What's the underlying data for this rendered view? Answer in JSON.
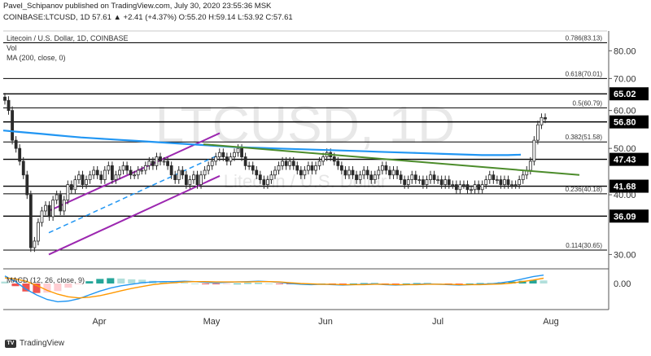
{
  "header": {
    "line1": "Pavel_Schipanov published on TradingView.com, July 30, 2020 23:55:36 MSK",
    "line2": "COINBASE:LTCUSD, 1D 57.61 ▲ +2.41 (+4.37%) O:55.20 H:59.14 L:53.92 C:57.61"
  },
  "chart_labels": {
    "symbol": "Litecoin / U.S. Dollar, 1D, COINBASE",
    "vol": "Vol",
    "ma": "MA (200, close, 0)",
    "macd": "MACD (12, 26, close, 9)",
    "watermark_big": "LTCUSD, 1D",
    "watermark_small": "Litecoin / U.S. Dollar"
  },
  "footer": {
    "brand": "TradingView",
    "badge": "TV"
  },
  "colors": {
    "up": "#26a69a",
    "down": "#ef5350",
    "candle_body": "#2a2a2a",
    "ma200": "#2196f3",
    "trend_green": "#4c8c2b",
    "channel": "#9c27b0",
    "macd_line": "#2196f3",
    "signal_line": "#ff9800",
    "level": "#000000"
  },
  "chart_data": [
    {
      "type": "candlestick",
      "title": "Litecoin / U.S. Dollar, 1D, COINBASE",
      "x_ticks": [
        "Apr",
        "May",
        "Jun",
        "Jul",
        "Aug"
      ],
      "y_ticks": [
        30.0,
        40.0,
        50.0,
        60.0,
        70.0,
        80.0
      ],
      "ylim": [
        28,
        88
      ],
      "y_scale": "log",
      "horizontal_levels": [
        {
          "value": 83.13,
          "label": "0.786(83.13)"
        },
        {
          "value": 70.01,
          "label": "0.618(70.01)"
        },
        {
          "value": 65.02,
          "label": "65.02",
          "tag": true
        },
        {
          "value": 60.79,
          "label": "0.5(60.79)"
        },
        {
          "value": 56.8,
          "label": "56.80",
          "tag": true
        },
        {
          "value": 51.58,
          "label": "0.382(51.58)"
        },
        {
          "value": 47.43,
          "label": "47.43",
          "tag": true
        },
        {
          "value": 41.68,
          "label": "41.68",
          "tag": true
        },
        {
          "value": 40.18,
          "label": "0.236(40.18)"
        },
        {
          "value": 36.09,
          "label": "36.09",
          "tag": true
        },
        {
          "value": 30.65,
          "label": "0.114(30.65)"
        }
      ],
      "close_series": [
        63,
        60,
        52,
        50,
        47,
        44,
        40,
        31,
        32,
        35,
        37,
        38,
        36,
        39,
        40,
        37,
        39,
        42,
        41,
        43,
        44,
        42,
        43,
        44,
        45,
        44,
        43,
        45,
        46,
        43,
        44,
        45,
        46,
        45,
        44,
        44,
        45,
        45,
        46,
        47,
        46,
        48,
        47,
        47,
        46,
        44,
        43,
        45,
        44,
        42,
        43,
        44,
        42,
        44,
        45,
        46,
        47,
        48,
        49,
        48,
        47,
        48,
        49,
        50,
        48,
        46,
        46,
        45,
        44,
        43,
        42,
        43,
        44,
        45,
        46,
        47,
        46,
        47,
        46,
        45,
        44,
        45,
        46,
        45,
        46,
        47,
        48,
        49,
        48,
        47,
        46,
        45,
        44,
        45,
        44,
        43,
        44,
        45,
        44,
        43,
        44,
        45,
        46,
        45,
        44,
        45,
        44,
        43,
        42,
        43,
        44,
        43,
        43,
        42,
        43,
        44,
        43,
        43,
        42,
        43,
        42,
        42,
        41,
        42,
        42,
        41,
        41,
        42,
        41,
        42,
        43,
        44,
        43,
        43,
        42,
        43,
        42,
        42,
        42,
        43,
        44,
        45,
        47,
        52,
        56,
        58,
        57.61
      ],
      "ma200": [
        54.5,
        54.2,
        53.9,
        53.6,
        53.3,
        53.0,
        52.7,
        52.5,
        52.3,
        52.1,
        51.9,
        51.7,
        51.5,
        51.3,
        51.1,
        50.9,
        50.7,
        50.5,
        50.3,
        50.2,
        50.1,
        50.0,
        49.9,
        49.8,
        49.7,
        49.6,
        49.5,
        49.4,
        49.3,
        49.2,
        49.1,
        49.0,
        48.9,
        48.8,
        48.7,
        48.6,
        48.5,
        48.4,
        48.4,
        48.4,
        48.5
      ],
      "green_trend": {
        "from": 51.0,
        "to": 44.0
      },
      "channel": {
        "lower_from": 30.0,
        "lower_to": 43.8,
        "upper_from": 37.0,
        "upper_to": 53.8
      }
    },
    {
      "type": "line",
      "title": "MACD (12, 26, close, 9)",
      "y_ticks": [
        0.0
      ],
      "ylim": [
        -6,
        3
      ],
      "series": [
        {
          "name": "MACD",
          "values": [
            2.0,
            0.5,
            -1.5,
            -3.0,
            -4.2,
            -4.8,
            -4.6,
            -4.0,
            -3.0,
            -2.0,
            -1.2,
            -0.6,
            -0.2,
            0.2,
            0.4,
            0.5,
            0.5,
            0.6,
            0.5,
            0.3,
            0.2,
            0.3,
            0.4,
            0.5,
            0.6,
            0.5,
            0.3,
            0.0,
            -0.2,
            -0.3,
            -0.2,
            -0.3,
            -0.4,
            -0.3,
            -0.2,
            -0.1,
            -0.3,
            -0.4,
            -0.3,
            -0.2,
            -0.1,
            -0.2,
            -0.3,
            -0.4,
            -0.3,
            -0.2,
            -0.1,
            0.2,
            0.6,
            1.2,
            1.8,
            2.2
          ]
        },
        {
          "name": "Signal",
          "values": [
            1.5,
            1.2,
            0.6,
            -0.5,
            -1.8,
            -2.8,
            -3.5,
            -3.8,
            -3.6,
            -3.2,
            -2.6,
            -1.9,
            -1.3,
            -0.8,
            -0.3,
            0.0,
            0.2,
            0.4,
            0.5,
            0.5,
            0.4,
            0.4,
            0.4,
            0.4,
            0.5,
            0.5,
            0.4,
            0.2,
            0.0,
            -0.1,
            -0.2,
            -0.2,
            -0.3,
            -0.3,
            -0.3,
            -0.2,
            -0.2,
            -0.3,
            -0.3,
            -0.3,
            -0.2,
            -0.2,
            -0.2,
            -0.3,
            -0.3,
            -0.3,
            -0.2,
            -0.1,
            0.1,
            0.5,
            0.9,
            1.4
          ]
        }
      ]
    }
  ]
}
